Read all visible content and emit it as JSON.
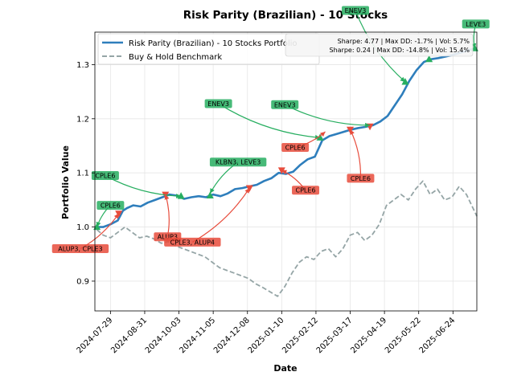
{
  "chart_data": {
    "type": "line",
    "title": "Risk Parity (Brazilian) - 10 Stocks",
    "xlabel": "Date",
    "ylabel": "Portfolio Value",
    "ylim": [
      0.845,
      1.36
    ],
    "xlim": [
      "2024-07-14",
      "2025-07-17"
    ],
    "yticks": [
      0.9,
      1.0,
      1.1,
      1.2,
      1.3
    ],
    "ytick_labels": [
      "0.9",
      "1.0",
      "1.1",
      "1.2",
      "1.3"
    ],
    "xticks": [
      "2024-07-29",
      "2024-08-31",
      "2024-10-03",
      "2024-11-05",
      "2024-12-08",
      "2025-01-10",
      "2025-02-12",
      "2025-03-17",
      "2025-04-19",
      "2025-05-22",
      "2025-06-24"
    ],
    "grid": true,
    "legend_position": "top-left",
    "series": [
      {
        "name": "Risk Parity (Brazilian) - 10 Stocks Portfolio",
        "color": "#2e7ebc",
        "style": "solid",
        "points": [
          [
            "2024-07-16",
            1.0
          ],
          [
            "2024-07-22",
            1.0
          ],
          [
            "2024-07-29",
            1.005
          ],
          [
            "2024-08-05",
            1.012
          ],
          [
            "2024-08-10",
            1.03
          ],
          [
            "2024-08-14",
            1.035
          ],
          [
            "2024-08-20",
            1.04
          ],
          [
            "2024-08-27",
            1.038
          ],
          [
            "2024-09-03",
            1.045
          ],
          [
            "2024-09-10",
            1.05
          ],
          [
            "2024-09-17",
            1.055
          ],
          [
            "2024-09-24",
            1.06
          ],
          [
            "2024-10-01",
            1.058
          ],
          [
            "2024-10-08",
            1.052
          ],
          [
            "2024-10-15",
            1.055
          ],
          [
            "2024-10-22",
            1.057
          ],
          [
            "2024-10-29",
            1.055
          ],
          [
            "2024-11-05",
            1.06
          ],
          [
            "2024-11-12",
            1.057
          ],
          [
            "2024-11-19",
            1.062
          ],
          [
            "2024-11-26",
            1.07
          ],
          [
            "2024-12-03",
            1.072
          ],
          [
            "2024-12-10",
            1.075
          ],
          [
            "2024-12-17",
            1.078
          ],
          [
            "2024-12-24",
            1.085
          ],
          [
            "2024-12-31",
            1.09
          ],
          [
            "2025-01-07",
            1.1
          ],
          [
            "2025-01-14",
            1.098
          ],
          [
            "2025-01-21",
            1.102
          ],
          [
            "2025-01-28",
            1.115
          ],
          [
            "2025-02-04",
            1.125
          ],
          [
            "2025-02-11",
            1.13
          ],
          [
            "2025-02-18",
            1.16
          ],
          [
            "2025-02-25",
            1.168
          ],
          [
            "2025-03-04",
            1.172
          ],
          [
            "2025-03-11",
            1.176
          ],
          [
            "2025-03-18",
            1.18
          ],
          [
            "2025-03-25",
            1.183
          ],
          [
            "2025-04-01",
            1.185
          ],
          [
            "2025-04-08",
            1.188
          ],
          [
            "2025-04-15",
            1.195
          ],
          [
            "2025-04-22",
            1.205
          ],
          [
            "2025-04-29",
            1.225
          ],
          [
            "2025-05-06",
            1.245
          ],
          [
            "2025-05-13",
            1.27
          ],
          [
            "2025-05-20",
            1.29
          ],
          [
            "2025-05-27",
            1.305
          ],
          [
            "2025-06-03",
            1.31
          ],
          [
            "2025-06-10",
            1.312
          ],
          [
            "2025-06-17",
            1.315
          ],
          [
            "2025-06-24",
            1.318
          ],
          [
            "2025-07-01",
            1.322
          ],
          [
            "2025-07-08",
            1.326
          ],
          [
            "2025-07-15",
            1.33
          ]
        ]
      },
      {
        "name": "Buy & Hold Benchmark",
        "color": "#95a5a6",
        "style": "dashed",
        "points": [
          [
            "2024-07-16",
            0.995
          ],
          [
            "2024-07-22",
            0.985
          ],
          [
            "2024-07-29",
            0.98
          ],
          [
            "2024-08-05",
            0.99
          ],
          [
            "2024-08-12",
            1.0
          ],
          [
            "2024-08-19",
            0.99
          ],
          [
            "2024-08-26",
            0.98
          ],
          [
            "2024-09-02",
            0.983
          ],
          [
            "2024-09-09",
            0.978
          ],
          [
            "2024-09-16",
            0.97
          ],
          [
            "2024-09-23",
            0.973
          ],
          [
            "2024-09-30",
            0.965
          ],
          [
            "2024-10-07",
            0.96
          ],
          [
            "2024-10-14",
            0.955
          ],
          [
            "2024-10-21",
            0.95
          ],
          [
            "2024-10-28",
            0.945
          ],
          [
            "2024-11-04",
            0.935
          ],
          [
            "2024-11-11",
            0.925
          ],
          [
            "2024-11-18",
            0.92
          ],
          [
            "2024-11-25",
            0.915
          ],
          [
            "2024-12-02",
            0.91
          ],
          [
            "2024-12-09",
            0.905
          ],
          [
            "2024-12-16",
            0.895
          ],
          [
            "2024-12-23",
            0.888
          ],
          [
            "2024-12-30",
            0.88
          ],
          [
            "2025-01-06",
            0.872
          ],
          [
            "2025-01-13",
            0.89
          ],
          [
            "2025-01-20",
            0.915
          ],
          [
            "2025-01-27",
            0.935
          ],
          [
            "2025-02-03",
            0.945
          ],
          [
            "2025-02-10",
            0.94
          ],
          [
            "2025-02-17",
            0.955
          ],
          [
            "2025-02-24",
            0.96
          ],
          [
            "2025-03-03",
            0.945
          ],
          [
            "2025-03-10",
            0.96
          ],
          [
            "2025-03-17",
            0.985
          ],
          [
            "2025-03-24",
            0.99
          ],
          [
            "2025-03-31",
            0.975
          ],
          [
            "2025-04-07",
            0.985
          ],
          [
            "2025-04-14",
            1.005
          ],
          [
            "2025-04-21",
            1.04
          ],
          [
            "2025-04-28",
            1.05
          ],
          [
            "2025-05-05",
            1.06
          ],
          [
            "2025-05-12",
            1.05
          ],
          [
            "2025-05-19",
            1.07
          ],
          [
            "2025-05-26",
            1.085
          ],
          [
            "2025-06-02",
            1.06
          ],
          [
            "2025-06-09",
            1.07
          ],
          [
            "2025-06-16",
            1.05
          ],
          [
            "2025-06-23",
            1.055
          ],
          [
            "2025-06-30",
            1.075
          ],
          [
            "2025-07-07",
            1.06
          ],
          [
            "2025-07-17",
            1.02
          ]
        ]
      }
    ],
    "stats": [
      "Sharpe: 4.77 | Max DD: -1.7% | Vol: 5.7%",
      "Sharpe: 0.24 | Max DD: -14.8% | Vol: 15.4%"
    ],
    "buy_markers": [
      {
        "date": "2024-07-16",
        "y": 1.0
      },
      {
        "date": "2024-10-05",
        "y": 1.057
      },
      {
        "date": "2024-11-02",
        "y": 1.058
      },
      {
        "date": "2025-02-16",
        "y": 1.165
      },
      {
        "date": "2025-05-09",
        "y": 1.268
      },
      {
        "date": "2025-06-01",
        "y": 1.31
      },
      {
        "date": "2025-07-15",
        "y": 1.33
      }
    ],
    "sell_markers": [
      {
        "date": "2024-08-06",
        "y": 1.025
      },
      {
        "date": "2024-09-20",
        "y": 1.06
      },
      {
        "date": "2024-12-10",
        "y": 1.072
      },
      {
        "date": "2025-01-10",
        "y": 1.105
      },
      {
        "date": "2025-03-17",
        "y": 1.18
      },
      {
        "date": "2025-04-05",
        "y": 1.186
      }
    ],
    "annotations": [
      {
        "text": "CPLE6",
        "kind": "buy",
        "date": "2024-07-29",
        "y": 1.04,
        "target": "2024-07-16",
        "ty": 1.0
      },
      {
        "text": "CPLE6",
        "kind": "buy",
        "date": "2024-07-24",
        "y": 1.095,
        "target": "2024-10-05",
        "ty": 1.057
      },
      {
        "text": "KLBN3, LEVE3",
        "kind": "buy",
        "date": "2024-11-29",
        "y": 1.12,
        "target": "2024-11-02",
        "ty": 1.062
      },
      {
        "text": "ENEV3",
        "kind": "buy",
        "date": "2024-11-10",
        "y": 1.228,
        "target": "2025-02-16",
        "ty": 1.165
      },
      {
        "text": "ENEV3",
        "kind": "buy",
        "date": "2025-01-13",
        "y": 1.226,
        "target": "2025-04-05",
        "ty": 1.188
      },
      {
        "text": "ENEV3",
        "kind": "buy",
        "date": "2025-03-22",
        "y": 1.4,
        "target": "2025-05-09",
        "ty": 1.268
      },
      {
        "text": "LEVE3",
        "kind": "buy",
        "date": "2025-07-16",
        "y": 1.375,
        "target": "2025-07-15",
        "ty": 1.33
      },
      {
        "text": "ALUP3, CPLE3",
        "kind": "sell",
        "date": "2024-06-30",
        "y": 0.96,
        "target": "2024-08-06",
        "ty": 1.025
      },
      {
        "text": "ALUP3",
        "kind": "sell",
        "date": "2024-09-22",
        "y": 0.982,
        "target": "2024-09-20",
        "ty": 1.06
      },
      {
        "text": "CPLE3, ALUP4",
        "kind": "sell",
        "date": "2024-10-16",
        "y": 0.972,
        "target": "2024-12-10",
        "ty": 1.072
      },
      {
        "text": "CPLE6",
        "kind": "sell",
        "date": "2025-01-23",
        "y": 1.147,
        "target": "2025-02-21",
        "ty": 1.176
      },
      {
        "text": "CPLE6",
        "kind": "sell",
        "date": "2025-02-02",
        "y": 1.068,
        "target": "2025-01-10",
        "ty": 1.105
      },
      {
        "text": "CPLE6",
        "kind": "sell",
        "date": "2025-03-27",
        "y": 1.09,
        "target": "2025-03-17",
        "ty": 1.18
      }
    ]
  },
  "colors": {
    "portfolio": "#2e7ebc",
    "benchmark": "#95a5a6",
    "buy": "#27ae60",
    "sell": "#e74c3c",
    "grid": "#e6e6e6"
  }
}
